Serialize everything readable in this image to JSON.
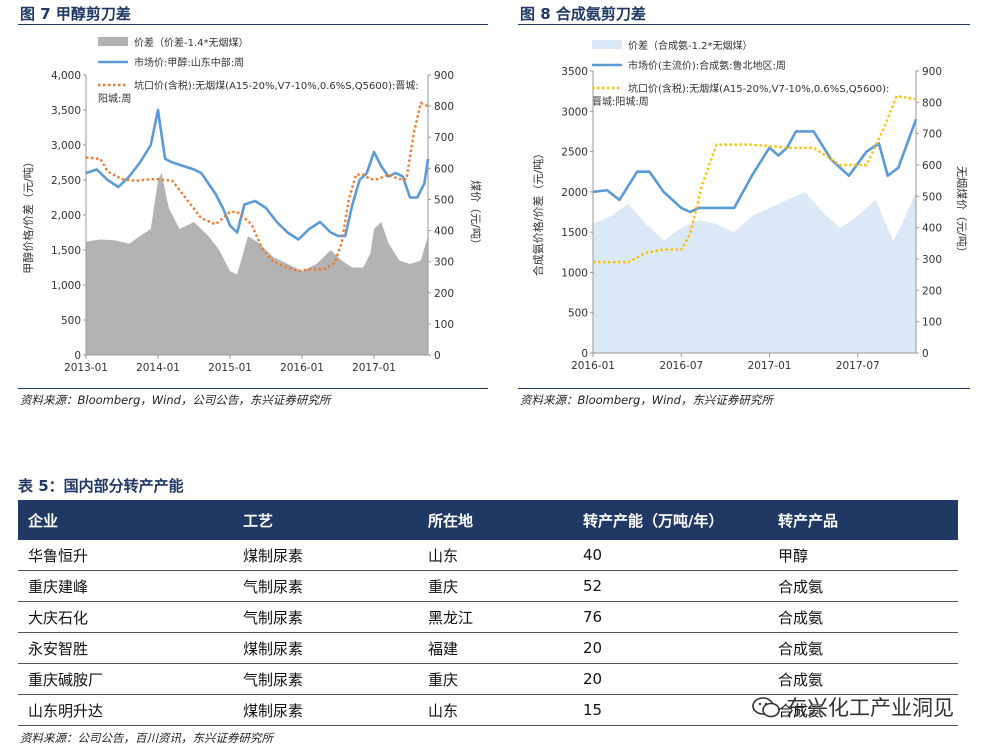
{
  "fig7": {
    "title": "图 7 甲醇剪刀差",
    "source": "资料来源：Bloomberg，Wind，公司公告，东兴证券研究所",
    "legend": [
      "价差（价差-1.4*无烟煤）",
      "市场价:甲醇:山东中部:周",
      "坑口价(含税):无烟煤(A15-20%,V7-10%,0.6%S,Q5600):晋城:",
      "阳城:周"
    ],
    "left_axis_label": "甲醇价格/价差（元/吨）",
    "right_axis_label": "煤价（元/吨）",
    "colors": {
      "spread": "#b3b3b3",
      "methanol": "#5b9bd5",
      "coal": "#ed7d31"
    }
  },
  "fig8": {
    "title": "图 8 合成氨剪刀差",
    "source": "资料来源：Bloomberg，Wind，东兴证券研究所",
    "legend": [
      "价差（合成氨-1.2*无烟煤）",
      "市场价(主流价):合成氨:鲁北地区:周",
      "坑口价(含税):无烟煤(A15-20%,V7-10%,0.6%S,Q5600):",
      "晋城:阳城:周"
    ],
    "left_axis_label": "合成氨价格/价差（元/吨）",
    "right_axis_label": "无烟煤价（元/吨）",
    "colors": {
      "spread": "#dbe8f6",
      "ammonia": "#5b9bd5",
      "coal": "#ffc000"
    }
  },
  "chart_data": [
    {
      "type": "area+line",
      "title": "图 7 甲醇剪刀差",
      "x_ticks": [
        "2013-01",
        "2014-01",
        "2015-01",
        "2016-01",
        "2017-01"
      ],
      "x_range": [
        2013.0,
        2017.75
      ],
      "ylim_left": [
        0,
        4000
      ],
      "yticks_left": [
        "0",
        "500",
        "1,000",
        "1,500",
        "2,000",
        "2,500",
        "3,000",
        "3,500",
        "4,000"
      ],
      "ylim_right": [
        0,
        900
      ],
      "yticks_right": [
        "0",
        "100",
        "200",
        "300",
        "400",
        "500",
        "600",
        "700",
        "800",
        "900"
      ],
      "series": [
        {
          "name": "价差（价差-1.4*无烟煤）",
          "axis": "left",
          "x": [
            2013.0,
            2013.2,
            2013.4,
            2013.6,
            2013.75,
            2013.9,
            2014.0,
            2014.05,
            2014.15,
            2014.3,
            2014.5,
            2014.7,
            2014.85,
            2015.0,
            2015.1,
            2015.25,
            2015.4,
            2015.6,
            2015.8,
            2016.0,
            2016.2,
            2016.4,
            2016.55,
            2016.7,
            2016.85,
            2016.95,
            2017.0,
            2017.1,
            2017.2,
            2017.35,
            2017.5,
            2017.65,
            2017.75
          ],
          "y": [
            1620,
            1650,
            1640,
            1590,
            1700,
            1800,
            2500,
            2600,
            2100,
            1800,
            1900,
            1700,
            1500,
            1200,
            1150,
            1700,
            1600,
            1400,
            1300,
            1200,
            1300,
            1500,
            1350,
            1250,
            1250,
            1450,
            1800,
            1900,
            1600,
            1350,
            1300,
            1350,
            1700
          ]
        },
        {
          "name": "市场价:甲醇:山东中部:周",
          "axis": "left",
          "x": [
            2013.0,
            2013.15,
            2013.3,
            2013.45,
            2013.6,
            2013.75,
            2013.9,
            2014.0,
            2014.02,
            2014.1,
            2014.2,
            2014.35,
            2014.5,
            2014.6,
            2014.7,
            2014.8,
            2014.9,
            2015.0,
            2015.1,
            2015.2,
            2015.35,
            2015.5,
            2015.65,
            2015.8,
            2015.95,
            2016.1,
            2016.25,
            2016.4,
            2016.5,
            2016.6,
            2016.7,
            2016.8,
            2016.9,
            2017.0,
            2017.1,
            2017.2,
            2017.3,
            2017.4,
            2017.5,
            2017.6,
            2017.7,
            2017.75
          ],
          "y": [
            2600,
            2650,
            2500,
            2400,
            2550,
            2750,
            3000,
            3500,
            3350,
            2800,
            2750,
            2700,
            2650,
            2600,
            2450,
            2300,
            2100,
            1850,
            1750,
            2150,
            2200,
            2100,
            1900,
            1750,
            1650,
            1800,
            1900,
            1750,
            1700,
            1700,
            2150,
            2500,
            2600,
            2900,
            2700,
            2550,
            2600,
            2550,
            2250,
            2250,
            2450,
            2800
          ]
        },
        {
          "name": "坑口价(含税):无烟煤(A15-20%,V7-10%,0.6%S,Q5600):晋城:阳城:周",
          "axis": "right",
          "x": [
            2013.0,
            2013.2,
            2013.3,
            2013.5,
            2013.7,
            2013.9,
            2014.0,
            2014.2,
            2014.4,
            2014.6,
            2014.8,
            2015.0,
            2015.1,
            2015.3,
            2015.45,
            2015.6,
            2015.8,
            2015.95,
            2016.1,
            2016.3,
            2016.45,
            2016.55,
            2016.65,
            2016.75,
            2016.85,
            2016.95,
            2017.05,
            2017.2,
            2017.35,
            2017.45,
            2017.55,
            2017.65,
            2017.75
          ],
          "y": [
            635,
            630,
            590,
            565,
            560,
            565,
            565,
            560,
            500,
            440,
            420,
            460,
            460,
            420,
            340,
            300,
            280,
            270,
            275,
            275,
            295,
            360,
            500,
            580,
            580,
            565,
            565,
            580,
            565,
            565,
            710,
            810,
            800
          ]
        }
      ]
    },
    {
      "type": "area+line",
      "title": "图 8 合成氨剪刀差",
      "x_ticks": [
        "2016-01",
        "2016-07",
        "2017-01",
        "2017-07"
      ],
      "x_range": [
        2016.0,
        2017.83
      ],
      "ylim_left": [
        0,
        3500
      ],
      "yticks_left": [
        "0",
        "500",
        "1000",
        "1500",
        "2000",
        "2500",
        "3000",
        "3500"
      ],
      "ylim_right": [
        0,
        900
      ],
      "yticks_right": [
        "0",
        "100",
        "200",
        "300",
        "400",
        "500",
        "600",
        "700",
        "800",
        "900"
      ],
      "series": [
        {
          "name": "价差（合成氨-1.2*无烟煤）",
          "axis": "left",
          "x": [
            2016.0,
            2016.1,
            2016.2,
            2016.3,
            2016.4,
            2016.5,
            2016.6,
            2016.7,
            2016.8,
            2016.9,
            2017.0,
            2017.1,
            2017.2,
            2017.3,
            2017.4,
            2017.5,
            2017.6,
            2017.7,
            2017.75,
            2017.83
          ],
          "y": [
            1600,
            1700,
            1850,
            1600,
            1400,
            1550,
            1650,
            1600,
            1500,
            1700,
            1800,
            1900,
            2000,
            1750,
            1550,
            1700,
            1900,
            1400,
            1600,
            2000
          ]
        },
        {
          "name": "市场价(主流价):合成氨:鲁北地区:周",
          "axis": "left",
          "x": [
            2016.0,
            2016.08,
            2016.15,
            2016.25,
            2016.32,
            2016.4,
            2016.5,
            2016.55,
            2016.6,
            2016.7,
            2016.8,
            2016.9,
            2017.0,
            2017.05,
            2017.1,
            2017.15,
            2017.25,
            2017.35,
            2017.45,
            2017.55,
            2017.62,
            2017.67,
            2017.73,
            2017.78,
            2017.83
          ],
          "y": [
            2000,
            2020,
            1900,
            2250,
            2250,
            2000,
            1800,
            1750,
            1800,
            1800,
            1800,
            2200,
            2550,
            2450,
            2550,
            2750,
            2750,
            2400,
            2200,
            2500,
            2600,
            2200,
            2300,
            2600,
            2900
          ]
        },
        {
          "name": "坑口价(含税):无烟煤(A15-20%,V7-10%,0.6%S,Q5600):晋城:阳城:周",
          "axis": "right",
          "x": [
            2016.0,
            2016.2,
            2016.3,
            2016.4,
            2016.5,
            2016.55,
            2016.62,
            2016.7,
            2016.8,
            2016.9,
            2017.0,
            2017.1,
            2017.25,
            2017.4,
            2017.55,
            2017.65,
            2017.72,
            2017.83
          ],
          "y": [
            290,
            290,
            320,
            330,
            330,
            380,
            540,
            665,
            665,
            665,
            660,
            655,
            655,
            600,
            600,
            720,
            820,
            810
          ]
        }
      ]
    }
  ],
  "table": {
    "title": "表 5：国内部分转产产能",
    "headers": [
      "企业",
      "工艺",
      "所在地",
      "转产产能（万吨/年）",
      "转产产品"
    ],
    "rows": [
      [
        "华鲁恒升",
        "煤制尿素",
        "山东",
        "40",
        "甲醇"
      ],
      [
        "重庆建峰",
        "气制尿素",
        "重庆",
        "52",
        "合成氨"
      ],
      [
        "大庆石化",
        "气制尿素",
        "黑龙江",
        "76",
        "合成氨"
      ],
      [
        "永安智胜",
        "煤制尿素",
        "福建",
        "20",
        "合成氨"
      ],
      [
        "重庆碱胺厂",
        "气制尿素",
        "重庆",
        "20",
        "合成氨"
      ],
      [
        "山东明升达",
        "煤制尿素",
        "山东",
        "15",
        "合成氨"
      ]
    ],
    "source": "资料来源：公司公告，百川资讯，东兴证券研究所"
  },
  "watermark": "东兴化工产业洞见"
}
